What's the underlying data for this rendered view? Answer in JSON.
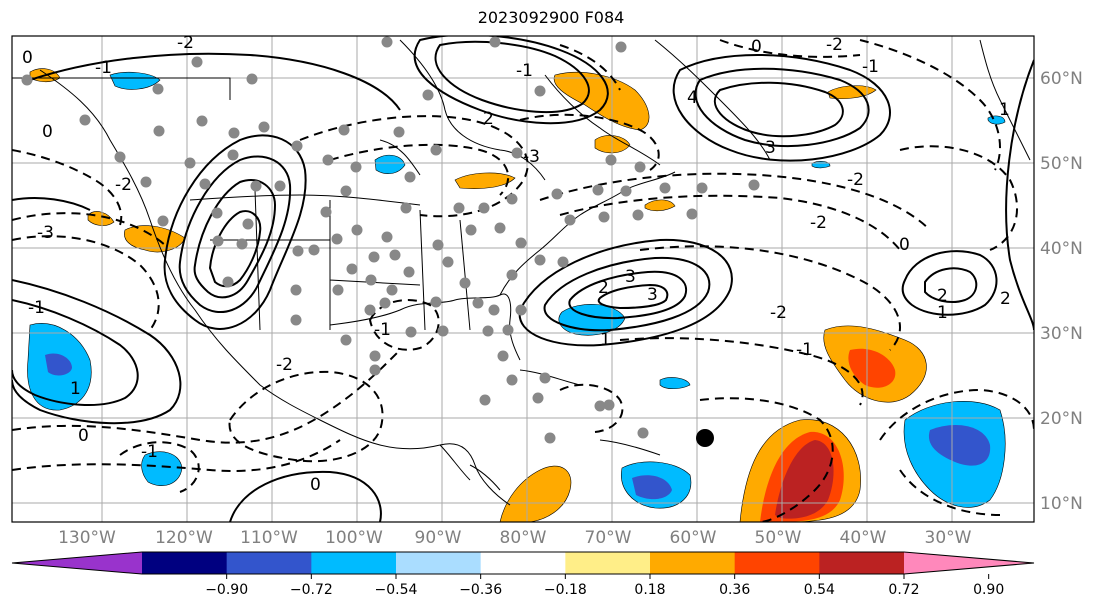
{
  "title": "2023092900 F084",
  "longitude_labels": [
    "130°W",
    "120°W",
    "110°W",
    "100°W",
    "90°W",
    "80°W",
    "70°W",
    "60°W",
    "50°W",
    "40°W",
    "30°W"
  ],
  "latitude_labels": [
    "60°N",
    "50°N",
    "40°N",
    "30°N",
    "20°N",
    "10°N"
  ],
  "contour_labels": [
    "0",
    "-2",
    "-1",
    "0",
    "-2",
    "-3",
    "2",
    "-1",
    "-3",
    "3",
    "4",
    "-1",
    "-2",
    "0",
    "3",
    "1",
    "2",
    "-2",
    "-2",
    "3",
    "0",
    "1",
    "-1",
    "-2",
    "2",
    "1",
    "-1",
    "0",
    "-1",
    "-2",
    "-1",
    "0",
    "1",
    "2"
  ],
  "colorbar": {
    "tick_labels": [
      "−0.90",
      "−0.72",
      "−0.54",
      "−0.36",
      "−0.18",
      "0.18",
      "0.36",
      "0.54",
      "0.72",
      "0.90"
    ],
    "colors": [
      "#9933cc",
      "#000080",
      "#3355cc",
      "#00bbff",
      "#aaddff",
      "#ffffff",
      "#ffee88",
      "#ffaa00",
      "#ff4400",
      "#bb2222",
      "#ff88bb"
    ]
  },
  "colors": {
    "land_line": "#000000",
    "grid": "#aaaaaa",
    "station_dot": "#888888",
    "storm_center": "#000000"
  }
}
